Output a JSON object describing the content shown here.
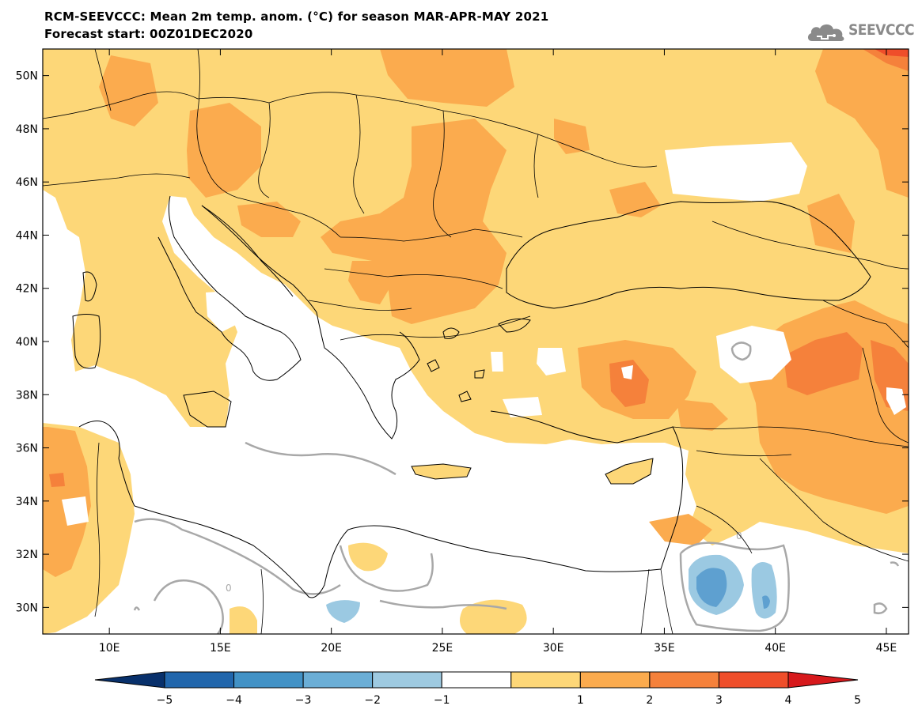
{
  "header": {
    "title": "RCM-SEEVCCC: Mean 2m temp. anom. (°C) for season MAR-APR-MAY 2021",
    "subtitle": "Forecast start: 00Z01DEC2020",
    "logo_text": "SEEVCCC",
    "logo_icon": "cloud-icon"
  },
  "map": {
    "projection": "lat-lon",
    "lon_range": [
      7,
      46
    ],
    "lat_range": [
      29,
      51
    ],
    "lon_ticks": [
      10,
      15,
      20,
      25,
      30,
      35,
      40,
      45
    ],
    "lon_tick_labels": [
      "10E",
      "15E",
      "20E",
      "25E",
      "30E",
      "35E",
      "40E",
      "45E"
    ],
    "lat_ticks": [
      30,
      32,
      34,
      36,
      38,
      40,
      42,
      44,
      46,
      48,
      50
    ],
    "lat_tick_labels": [
      "30N",
      "32N",
      "34N",
      "36N",
      "38N",
      "40N",
      "42N",
      "44N",
      "46N",
      "48N",
      "50N"
    ],
    "contour_label": "0",
    "colors": {
      "sea": "#ffffff",
      "anom_1_2": "#fdd778",
      "anom_2_3": "#fbab4e",
      "anom_3_4": "#f5813b",
      "anom_4_5": "#ef4e2a",
      "anom_m1_m2": "#9bc9e2",
      "anom_m2_m3": "#5ea0d0",
      "zero_contour": "#a8a8a8",
      "borders": "#000000"
    }
  },
  "colorbar": {
    "labels": [
      "−5",
      "−4",
      "−3",
      "−2",
      "−1",
      "1",
      "2",
      "3",
      "4",
      "5"
    ],
    "colors": [
      "#08306b",
      "#2166ac",
      "#4292c6",
      "#6baed6",
      "#9ecae1",
      "#ffffff",
      "#fdd778",
      "#fbab4e",
      "#f5813b",
      "#ef4e2a",
      "#d7191c"
    ]
  }
}
